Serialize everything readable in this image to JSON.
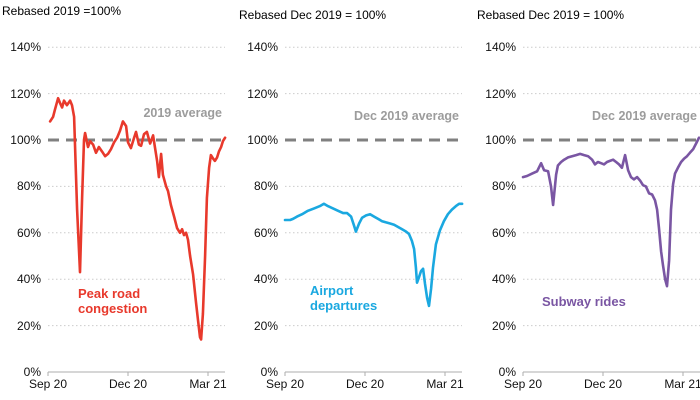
{
  "page": {
    "background": "#ffffff",
    "grid_color": "#cccccc",
    "axis_color": "#adadad",
    "tick_text_color": "#111111"
  },
  "chart_data": [
    {
      "type": "line",
      "title": "Rebased 2019 =100%",
      "series_label": "Peak road\ncongestion",
      "average_line": {
        "value": 100,
        "label": "2019 average",
        "color": "#808080",
        "label_color": "#9c9c9c"
      },
      "y_axis": {
        "range": [
          0,
          140
        ],
        "ticks": [
          0,
          20,
          40,
          60,
          80,
          100,
          120,
          140
        ],
        "tick_labels": [
          "0%",
          "20%",
          "40%",
          "60%",
          "80%",
          "100%",
          "120%",
          "140%"
        ]
      },
      "x_axis": {
        "unit": "months from Sep 2020",
        "range": [
          0,
          6.64
        ],
        "ticks": [
          {
            "t": 0,
            "label": "Sep 20"
          },
          {
            "t": 3,
            "label": "Dec 20"
          },
          {
            "t": 6,
            "label": "Mar 21"
          }
        ]
      },
      "grid": "dotted-horizontal",
      "series": [
        {
          "name": "Peak road congestion",
          "color": "#e8392c",
          "points": [
            [
              0.08,
              108
            ],
            [
              0.19,
              110
            ],
            [
              0.26,
              113
            ],
            [
              0.38,
              118
            ],
            [
              0.45,
              116
            ],
            [
              0.53,
              114
            ],
            [
              0.6,
              117
            ],
            [
              0.71,
              115
            ],
            [
              0.83,
              117
            ],
            [
              0.9,
              115
            ],
            [
              0.98,
              110
            ],
            [
              1.09,
              70
            ],
            [
              1.2,
              43
            ],
            [
              1.28,
              75
            ],
            [
              1.35,
              100
            ],
            [
              1.39,
              103
            ],
            [
              1.5,
              97
            ],
            [
              1.58,
              99.5
            ],
            [
              1.69,
              98
            ],
            [
              1.8,
              94.5
            ],
            [
              1.91,
              97
            ],
            [
              2.03,
              95
            ],
            [
              2.14,
              93
            ],
            [
              2.25,
              94
            ],
            [
              2.36,
              96
            ],
            [
              2.48,
              99
            ],
            [
              2.59,
              101
            ],
            [
              2.7,
              104
            ],
            [
              2.81,
              108
            ],
            [
              2.93,
              106
            ],
            [
              3.0,
              99
            ],
            [
              3.11,
              96.5
            ],
            [
              3.23,
              101
            ],
            [
              3.3,
              103.5
            ],
            [
              3.41,
              98
            ],
            [
              3.49,
              97.5
            ],
            [
              3.6,
              102.5
            ],
            [
              3.71,
              103.5
            ],
            [
              3.83,
              98.5
            ],
            [
              3.94,
              102
            ],
            [
              4.01,
              97
            ],
            [
              4.09,
              91
            ],
            [
              4.16,
              84
            ],
            [
              4.24,
              94
            ],
            [
              4.31,
              85
            ],
            [
              4.43,
              80
            ],
            [
              4.5,
              78
            ],
            [
              4.61,
              72
            ],
            [
              4.73,
              67
            ],
            [
              4.84,
              62
            ],
            [
              4.95,
              60
            ],
            [
              5.03,
              61.5
            ],
            [
              5.1,
              59
            ],
            [
              5.18,
              60
            ],
            [
              5.25,
              57
            ],
            [
              5.33,
              50
            ],
            [
              5.44,
              42
            ],
            [
              5.55,
              30
            ],
            [
              5.63,
              22
            ],
            [
              5.7,
              15
            ],
            [
              5.74,
              14
            ],
            [
              5.81,
              25
            ],
            [
              5.89,
              50
            ],
            [
              5.96,
              75
            ],
            [
              6.04,
              88
            ],
            [
              6.11,
              93.5
            ],
            [
              6.19,
              92
            ],
            [
              6.26,
              91
            ],
            [
              6.34,
              92.5
            ],
            [
              6.41,
              95
            ],
            [
              6.49,
              97
            ],
            [
              6.56,
              99.5
            ],
            [
              6.64,
              101
            ]
          ]
        }
      ]
    },
    {
      "type": "line",
      "title": "Rebased Dec 2019 = 100%",
      "series_label": "Airport\ndepartures",
      "average_line": {
        "value": 100,
        "label": "Dec 2019 average",
        "color": "#808080",
        "label_color": "#9c9c9c"
      },
      "y_axis": {
        "range": [
          0,
          140
        ],
        "ticks": [
          0,
          20,
          40,
          60,
          80,
          100,
          120,
          140
        ],
        "tick_labels": [
          "0%",
          "20%",
          "40%",
          "60%",
          "80%",
          "100%",
          "120%",
          "140%"
        ]
      },
      "x_axis": {
        "unit": "months from Sep 2020",
        "range": [
          0,
          6.64
        ],
        "ticks": [
          {
            "t": 0,
            "label": "Sep 20"
          },
          {
            "t": 3,
            "label": "Dec 20"
          },
          {
            "t": 6,
            "label": "Mar 21"
          }
        ]
      },
      "grid": "dotted-horizontal",
      "series": [
        {
          "name": "Airport departures",
          "color": "#1aa8e0",
          "points": [
            [
              0,
              65.5
            ],
            [
              0.19,
              65.5
            ],
            [
              0.3,
              66
            ],
            [
              0.45,
              67
            ],
            [
              0.64,
              68
            ],
            [
              0.86,
              69.5
            ],
            [
              1.09,
              70.5
            ],
            [
              1.31,
              71.5
            ],
            [
              1.46,
              72.5
            ],
            [
              1.61,
              71.5
            ],
            [
              1.8,
              70.5
            ],
            [
              1.99,
              69.5
            ],
            [
              2.18,
              68.5
            ],
            [
              2.33,
              68.5
            ],
            [
              2.48,
              67
            ],
            [
              2.59,
              63
            ],
            [
              2.66,
              60.5
            ],
            [
              2.78,
              64
            ],
            [
              2.89,
              66.5
            ],
            [
              3.04,
              67.5
            ],
            [
              3.19,
              68
            ],
            [
              3.34,
              67
            ],
            [
              3.49,
              66
            ],
            [
              3.64,
              65
            ],
            [
              3.79,
              64.5
            ],
            [
              3.94,
              64
            ],
            [
              4.09,
              63.5
            ],
            [
              4.24,
              62.5
            ],
            [
              4.39,
              61.5
            ],
            [
              4.54,
              60.5
            ],
            [
              4.65,
              59.5
            ],
            [
              4.76,
              56.5
            ],
            [
              4.84,
              53
            ],
            [
              4.91,
              45
            ],
            [
              4.95,
              38.5
            ],
            [
              5.03,
              41
            ],
            [
              5.1,
              43.5
            ],
            [
              5.18,
              44.5
            ],
            [
              5.25,
              38
            ],
            [
              5.33,
              32
            ],
            [
              5.4,
              28.5
            ],
            [
              5.48,
              36
            ],
            [
              5.55,
              45
            ],
            [
              5.66,
              55
            ],
            [
              5.81,
              61
            ],
            [
              5.96,
              65
            ],
            [
              6.11,
              68
            ],
            [
              6.26,
              70
            ],
            [
              6.41,
              71.5
            ],
            [
              6.53,
              72.5
            ],
            [
              6.64,
              72.5
            ]
          ]
        }
      ]
    },
    {
      "type": "line",
      "title": "Rebased Dec 2019 = 100%",
      "series_label": "Subway rides",
      "average_line": {
        "value": 100,
        "label": "Dec 2019 average",
        "color": "#808080",
        "label_color": "#9c9c9c"
      },
      "y_axis": {
        "range": [
          0,
          140
        ],
        "ticks": [
          0,
          20,
          40,
          60,
          80,
          100,
          120,
          140
        ],
        "tick_labels": [
          "0%",
          "20%",
          "40%",
          "60%",
          "80%",
          "100%",
          "120%",
          "140%"
        ]
      },
      "x_axis": {
        "unit": "months from Sep 2020",
        "range": [
          0,
          6.64
        ],
        "ticks": [
          {
            "t": 0,
            "label": "Sep 20"
          },
          {
            "t": 3,
            "label": "Dec 20"
          },
          {
            "t": 6,
            "label": "Mar 21"
          }
        ]
      },
      "grid": "dotted-horizontal",
      "series": [
        {
          "name": "Subway rides",
          "color": "#7a56a3",
          "points": [
            [
              0,
              84
            ],
            [
              0.15,
              84.5
            ],
            [
              0.34,
              85.5
            ],
            [
              0.53,
              86.5
            ],
            [
              0.68,
              90
            ],
            [
              0.79,
              87
            ],
            [
              0.94,
              86.5
            ],
            [
              1.05,
              80
            ],
            [
              1.13,
              72
            ],
            [
              1.24,
              85
            ],
            [
              1.31,
              89
            ],
            [
              1.43,
              90.5
            ],
            [
              1.54,
              91.5
            ],
            [
              1.69,
              92.5
            ],
            [
              1.84,
              93
            ],
            [
              1.99,
              93.5
            ],
            [
              2.14,
              94
            ],
            [
              2.29,
              93.5
            ],
            [
              2.44,
              93
            ],
            [
              2.59,
              91.5
            ],
            [
              2.7,
              89.5
            ],
            [
              2.81,
              90.5
            ],
            [
              2.93,
              90
            ],
            [
              3.04,
              89.5
            ],
            [
              3.15,
              90.5
            ],
            [
              3.26,
              91
            ],
            [
              3.38,
              91.5
            ],
            [
              3.49,
              90.5
            ],
            [
              3.6,
              89.5
            ],
            [
              3.71,
              88
            ],
            [
              3.83,
              93.5
            ],
            [
              3.94,
              87
            ],
            [
              4.05,
              84
            ],
            [
              4.16,
              83
            ],
            [
              4.28,
              84
            ],
            [
              4.39,
              82.5
            ],
            [
              4.5,
              80.5
            ],
            [
              4.61,
              80
            ],
            [
              4.73,
              77
            ],
            [
              4.84,
              76.5
            ],
            [
              4.95,
              74
            ],
            [
              5.03,
              70
            ],
            [
              5.1,
              62
            ],
            [
              5.18,
              52
            ],
            [
              5.25,
              46
            ],
            [
              5.33,
              40
            ],
            [
              5.4,
              37
            ],
            [
              5.48,
              48
            ],
            [
              5.55,
              70
            ],
            [
              5.63,
              81
            ],
            [
              5.7,
              85.5
            ],
            [
              5.81,
              88
            ],
            [
              5.93,
              90.5
            ],
            [
              6.04,
              92
            ],
            [
              6.15,
              93
            ],
            [
              6.26,
              94.5
            ],
            [
              6.38,
              96
            ],
            [
              6.49,
              98.5
            ],
            [
              6.6,
              101
            ]
          ]
        }
      ]
    }
  ]
}
